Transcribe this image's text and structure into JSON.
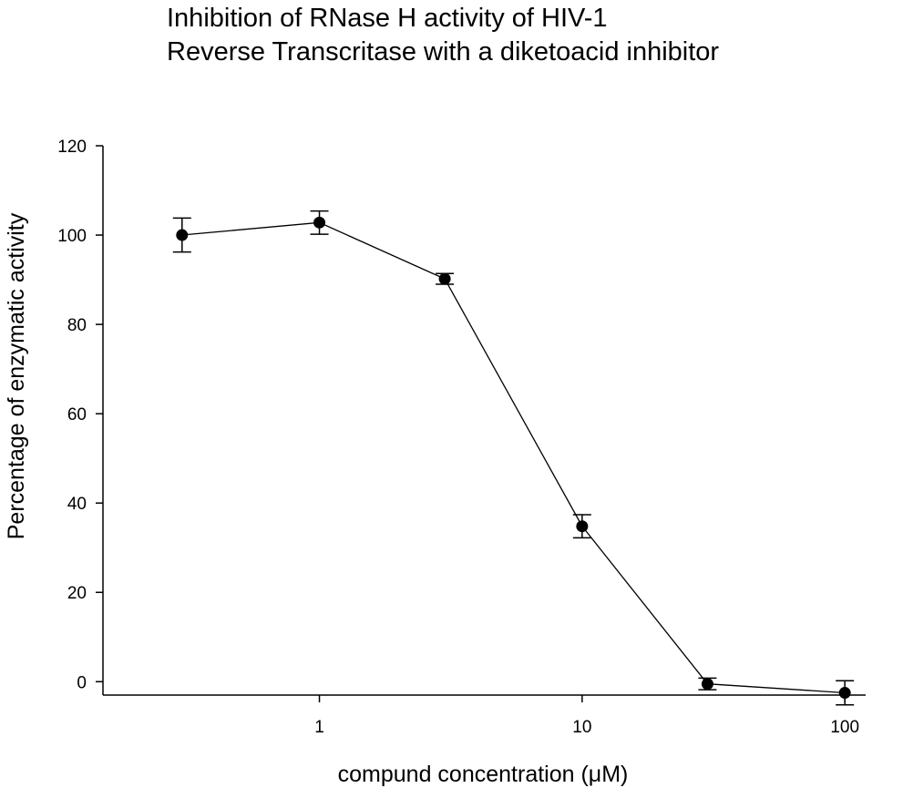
{
  "chart_data": {
    "type": "line",
    "title_lines": [
      "Inhibition of RNase H activity of HIV-1",
      "Reverse Transcritase with a diketoacid inhibitor"
    ],
    "xlabel": "compund concentration (μM)",
    "ylabel": "Percentage of enzymatic activity",
    "x_scale": "log",
    "xlim": [
      0.15,
      120
    ],
    "ylim": [
      -3,
      120
    ],
    "x_ticks": [
      1,
      10,
      100
    ],
    "x_tick_labels": [
      "1",
      "10",
      "100"
    ],
    "y_ticks": [
      0,
      20,
      40,
      60,
      80,
      100,
      120
    ],
    "y_tick_labels": [
      "0",
      "20",
      "40",
      "60",
      "80",
      "100",
      "120"
    ],
    "grid": false,
    "legend": "none",
    "series": [
      {
        "x": [
          0.3,
          1,
          3,
          10,
          30,
          100
        ],
        "y": [
          100,
          102.8,
          90.2,
          34.8,
          -0.5,
          -2.5
        ],
        "error": [
          3.8,
          2.6,
          1.2,
          2.6,
          1.3,
          2.7
        ]
      }
    ]
  }
}
